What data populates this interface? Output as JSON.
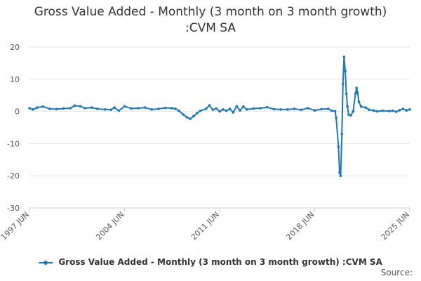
{
  "chart_data": {
    "type": "line",
    "title_lines": [
      "Gross Value Added - Monthly (3 month on 3 month growth)",
      ":CVM SA"
    ],
    "xlabel": "",
    "ylabel": "",
    "ylim": [
      -30,
      20
    ],
    "yticks": [
      "20",
      "10",
      "0",
      "-10",
      "-20",
      "-30"
    ],
    "x_tick_labels": [
      "1997 JUN",
      "2004 JUN",
      "2011 JUN",
      "2018 JUN",
      "2025 JUN"
    ],
    "x_tick_years": [
      1997.42,
      2004.42,
      2011.42,
      2018.42,
      2025.42
    ],
    "grid": true,
    "legend_position": "bottom",
    "series": [
      {
        "name": "Gross Value Added - Monthly (3 month on 3 month growth) :CVM SA",
        "color": "#1f77b4",
        "points": [
          [
            1997.42,
            1.0
          ],
          [
            1997.67,
            0.6
          ],
          [
            1998.0,
            1.2
          ],
          [
            1998.42,
            1.5
          ],
          [
            1998.92,
            0.8
          ],
          [
            1999.42,
            0.7
          ],
          [
            1999.92,
            0.9
          ],
          [
            2000.42,
            1.0
          ],
          [
            2000.75,
            1.8
          ],
          [
            2001.17,
            1.6
          ],
          [
            2001.5,
            1.0
          ],
          [
            2002.0,
            1.2
          ],
          [
            2002.42,
            0.8
          ],
          [
            2003.0,
            0.6
          ],
          [
            2003.42,
            0.5
          ],
          [
            2003.67,
            1.2
          ],
          [
            2004.0,
            0.2
          ],
          [
            2004.42,
            1.6
          ],
          [
            2004.92,
            0.9
          ],
          [
            2005.42,
            1.0
          ],
          [
            2005.92,
            1.2
          ],
          [
            2006.42,
            0.6
          ],
          [
            2006.92,
            0.8
          ],
          [
            2007.42,
            1.1
          ],
          [
            2007.92,
            1.0
          ],
          [
            2008.17,
            0.8
          ],
          [
            2008.42,
            0.2
          ],
          [
            2008.75,
            -1.0
          ],
          [
            2009.0,
            -1.8
          ],
          [
            2009.25,
            -2.3
          ],
          [
            2009.5,
            -1.5
          ],
          [
            2009.75,
            -0.6
          ],
          [
            2010.0,
            0.2
          ],
          [
            2010.42,
            0.8
          ],
          [
            2010.67,
            1.9
          ],
          [
            2010.92,
            0.5
          ],
          [
            2011.17,
            0.9
          ],
          [
            2011.42,
            0.0
          ],
          [
            2011.67,
            0.6
          ],
          [
            2011.92,
            0.2
          ],
          [
            2012.17,
            0.8
          ],
          [
            2012.42,
            -0.3
          ],
          [
            2012.67,
            1.6
          ],
          [
            2012.92,
            0.3
          ],
          [
            2013.17,
            1.5
          ],
          [
            2013.42,
            0.6
          ],
          [
            2013.92,
            0.9
          ],
          [
            2014.42,
            1.0
          ],
          [
            2014.92,
            1.3
          ],
          [
            2015.42,
            0.7
          ],
          [
            2015.92,
            0.6
          ],
          [
            2016.42,
            0.6
          ],
          [
            2016.92,
            0.8
          ],
          [
            2017.42,
            0.5
          ],
          [
            2017.92,
            1.0
          ],
          [
            2018.42,
            0.3
          ],
          [
            2018.92,
            0.7
          ],
          [
            2019.42,
            0.8
          ],
          [
            2019.67,
            0.2
          ],
          [
            2019.92,
            0.1
          ],
          [
            2020.0,
            -2.0
          ],
          [
            2020.17,
            -11.0
          ],
          [
            2020.25,
            -19.0
          ],
          [
            2020.33,
            -20.0
          ],
          [
            2020.42,
            -7.0
          ],
          [
            2020.5,
            8.5
          ],
          [
            2020.58,
            17.0
          ],
          [
            2020.67,
            12.5
          ],
          [
            2020.75,
            5.5
          ],
          [
            2020.83,
            1.5
          ],
          [
            2020.92,
            -1.0
          ],
          [
            2021.08,
            -1.2
          ],
          [
            2021.25,
            0.0
          ],
          [
            2021.42,
            5.5
          ],
          [
            2021.5,
            7.3
          ],
          [
            2021.58,
            5.8
          ],
          [
            2021.67,
            3.0
          ],
          [
            2021.83,
            1.5
          ],
          [
            2022.17,
            1.2
          ],
          [
            2022.42,
            0.5
          ],
          [
            2022.75,
            0.3
          ],
          [
            2023.0,
            0.0
          ],
          [
            2023.42,
            0.2
          ],
          [
            2023.92,
            0.1
          ],
          [
            2024.17,
            0.2
          ],
          [
            2024.42,
            -0.1
          ],
          [
            2024.67,
            0.4
          ],
          [
            2024.92,
            0.8
          ],
          [
            2025.17,
            0.3
          ],
          [
            2025.42,
            0.6
          ]
        ]
      }
    ]
  },
  "legend": {
    "label": "Gross Value Added - Monthly (3 month on 3 month growth) :CVM SA"
  },
  "source": {
    "label": "Source:"
  },
  "colors": {
    "series": "#1f77b4",
    "grid": "#e6e6e6",
    "axis": "#cccccc"
  }
}
